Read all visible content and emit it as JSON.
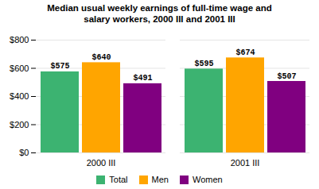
{
  "chart_data": {
    "type": "bar",
    "title": "Median usual weekly earnings of full-time wage and\nsalary workers, 2000 III and 2001 III",
    "categories": [
      "2000 III",
      "2001 III"
    ],
    "series": [
      {
        "name": "Total",
        "color": "#3cb371",
        "values": [
          575,
          595
        ],
        "value_labels": [
          "$575",
          "$595"
        ]
      },
      {
        "name": "Men",
        "color": "#ffa500",
        "values": [
          640,
          674
        ],
        "value_labels": [
          "$640",
          "$674"
        ]
      },
      {
        "name": "Women",
        "color": "#800080",
        "values": [
          491,
          507
        ],
        "value_labels": [
          "$491",
          "$507"
        ]
      }
    ],
    "ylim": [
      0,
      800
    ],
    "yticks": [
      {
        "value": 0,
        "label": "$0"
      },
      {
        "value": 200,
        "label": "$200"
      },
      {
        "value": 400,
        "label": "$400"
      },
      {
        "value": 600,
        "label": "$600"
      },
      {
        "value": 800,
        "label": "$800"
      }
    ],
    "grid": true,
    "legend": "bottom",
    "data_labels": true
  }
}
